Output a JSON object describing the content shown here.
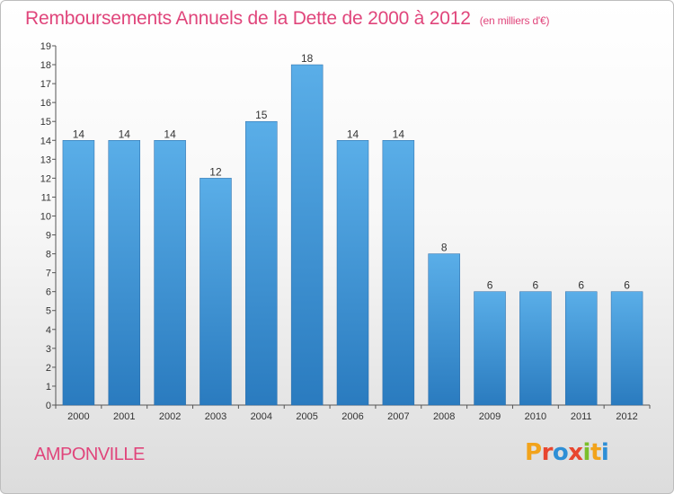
{
  "header": {
    "title": "Remboursements Annuels de la Dette de 2000 à 2012",
    "subtitle": "(en milliers d'€)"
  },
  "footer": {
    "commune": "AMPONVILLE",
    "logo_text": "Proxiti"
  },
  "colors": {
    "title": "#e0457b",
    "bar_top": "#5aaee8",
    "bar_bottom": "#2a7bbf",
    "logo_letters": [
      "#f2a31b",
      "#e8462f",
      "#2e8fd6",
      "#e8462f",
      "#7bbf2a",
      "#f2a31b",
      "#2e8fd6"
    ]
  },
  "chart_data": {
    "type": "bar",
    "title": "Remboursements Annuels de la Dette de 2000 à 2012",
    "subtitle": "(en milliers d'€)",
    "categories": [
      "2000",
      "2001",
      "2002",
      "2003",
      "2004",
      "2005",
      "2006",
      "2007",
      "2008",
      "2009",
      "2010",
      "2011",
      "2012"
    ],
    "values": [
      14,
      14,
      14,
      12,
      15,
      18,
      14,
      14,
      8,
      6,
      6,
      6,
      6
    ],
    "ylim": [
      0,
      19
    ],
    "yticks": [
      0,
      1,
      2,
      3,
      4,
      5,
      6,
      7,
      8,
      9,
      10,
      11,
      12,
      13,
      14,
      15,
      16,
      17,
      18,
      19
    ],
    "xlabel": "",
    "ylabel": "",
    "grid": false,
    "legend": "none",
    "data_labels": true
  }
}
